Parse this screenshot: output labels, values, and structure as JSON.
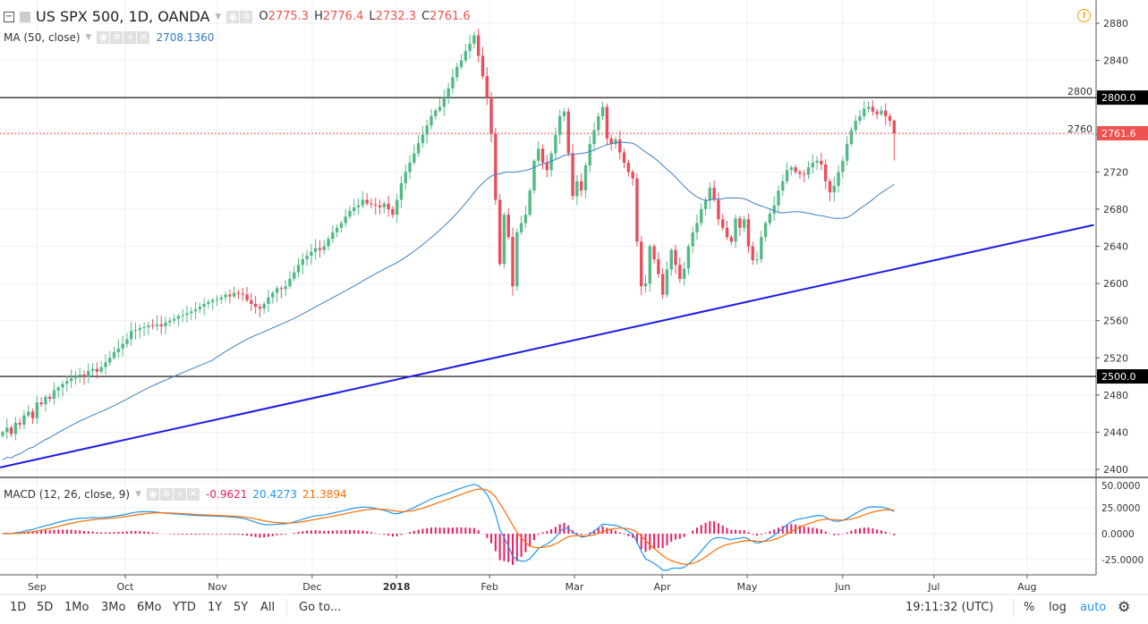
{
  "header": {
    "symbol_title": "US SPX 500, 1D, OANDA",
    "ohlc": {
      "o_label": "O",
      "o": "2775.3",
      "h_label": "H",
      "h": "2776.4",
      "l_label": "L",
      "l": "2732.3",
      "c_label": "C",
      "c": "2761.6"
    },
    "ma_label": "MA (50, close)",
    "ma_value": "2708.1360",
    "macd_label": "MACD (12, 26, close, 9)",
    "macd_hist": "-0.9621",
    "macd_value": "20.4273",
    "macd_signal": "21.3894",
    "alert_icon": "alert-circle-icon"
  },
  "colors": {
    "up": "#53b987",
    "down": "#eb4d5c",
    "ma": "#3f7fbf",
    "trendline": "#1a1ae6",
    "macd": "#2196f3",
    "signal": "#ff6d00",
    "hist": "#e91e63",
    "price_line": "#ef5350"
  },
  "chart_data": {
    "type": "candlestick",
    "price_axis": {
      "ticks": [
        2880,
        2840,
        2800,
        2760,
        2720,
        2680,
        2640,
        2600,
        2560,
        2520,
        2480,
        2440,
        2400
      ],
      "range": [
        2395,
        2905
      ]
    },
    "macd_axis": {
      "ticks": [
        "50.0000",
        "25.0000",
        "0.0000",
        "-25.0000"
      ],
      "tick_values": [
        50,
        25,
        0,
        -25
      ]
    },
    "x_ticks": [
      {
        "label": "Sep",
        "index": 8
      },
      {
        "label": "Oct",
        "index": 28.6
      },
      {
        "label": "Nov",
        "index": 50.1
      },
      {
        "label": "Dec",
        "index": 72.2
      },
      {
        "label": "2018",
        "index": 91.9
      },
      {
        "label": "Feb",
        "index": 113.6
      },
      {
        "label": "Mar",
        "index": 133.4
      },
      {
        "label": "Apr",
        "index": 153.9
      },
      {
        "label": "May",
        "index": 173.7
      },
      {
        "label": "Jun",
        "index": 196
      },
      {
        "label": "Jul",
        "index": 217.3
      },
      {
        "label": "Aug",
        "index": 239
      }
    ],
    "closes": [
      2440,
      2445,
      2438,
      2450,
      2448,
      2458,
      2462,
      2455,
      2472,
      2470,
      2478,
      2476,
      2485,
      2488,
      2492,
      2495,
      2498,
      2500,
      2502,
      2499,
      2506,
      2508,
      2505,
      2510,
      2515,
      2520,
      2526,
      2530,
      2535,
      2540,
      2549,
      2550,
      2552,
      2553,
      2555,
      2554,
      2556,
      2554,
      2558,
      2560,
      2562,
      2565,
      2566,
      2568,
      2570,
      2572,
      2575,
      2578,
      2580,
      2582,
      2583,
      2585,
      2588,
      2586,
      2590,
      2589,
      2588,
      2582,
      2578,
      2575,
      2573,
      2578,
      2585,
      2590,
      2595,
      2594,
      2597,
      2605,
      2612,
      2620,
      2626,
      2630,
      2634,
      2638,
      2636,
      2640,
      2648,
      2655,
      2660,
      2665,
      2672,
      2678,
      2682,
      2684,
      2690,
      2686,
      2685,
      2684,
      2682,
      2686,
      2680,
      2674,
      2690,
      2708,
      2720,
      2730,
      2740,
      2751,
      2760,
      2770,
      2780,
      2786,
      2790,
      2800,
      2810,
      2822,
      2833,
      2840,
      2850,
      2858,
      2867,
      2845,
      2823,
      2800,
      2761,
      2690,
      2621,
      2674,
      2650,
      2597,
      2655,
      2665,
      2674,
      2700,
      2732,
      2745,
      2730,
      2722,
      2740,
      2760,
      2780,
      2785,
      2740,
      2694,
      2710,
      2700,
      2727,
      2750,
      2765,
      2780,
      2790,
      2756,
      2750,
      2755,
      2741,
      2730,
      2720,
      2713,
      2645,
      2597,
      2600,
      2640,
      2626,
      2610,
      2588,
      2615,
      2636,
      2620,
      2605,
      2616,
      2640,
      2655,
      2665,
      2680,
      2690,
      2703,
      2690,
      2669,
      2660,
      2650,
      2645,
      2670,
      2660,
      2669,
      2640,
      2625,
      2626,
      2650,
      2665,
      2675,
      2684,
      2700,
      2710,
      2722,
      2725,
      2720,
      2718,
      2717,
      2725,
      2730,
      2732,
      2728,
      2710,
      2698,
      2705,
      2720,
      2732,
      2750,
      2765,
      2775,
      2780,
      2788,
      2790,
      2785,
      2782,
      2786,
      2780,
      2775,
      2761.6
    ],
    "last_candle": {
      "open": 2775.3,
      "high": 2776.4,
      "low": 2732.3,
      "close": 2761.6
    },
    "horizontal_lines": [
      {
        "price": 2800,
        "label": "2800.0"
      },
      {
        "price": 2500,
        "label": "2500.0"
      }
    ],
    "current_price": {
      "price": 2761.6,
      "label": "2761.6"
    },
    "trendline": [
      [
        -0.6,
        2402
      ],
      [
        254.6,
        2663
      ]
    ],
    "ma_period": 50,
    "macd_params": [
      12,
      26,
      9
    ]
  },
  "toolbar": {
    "ranges": [
      "1D",
      "5D",
      "1Mo",
      "3Mo",
      "6Mo",
      "YTD",
      "1Y",
      "5Y",
      "All"
    ],
    "goto": "Go to...",
    "clock": "19:11:32 (UTC)",
    "percent": "%",
    "log": "log",
    "auto": "auto",
    "settings_icon": "gear-icon"
  }
}
